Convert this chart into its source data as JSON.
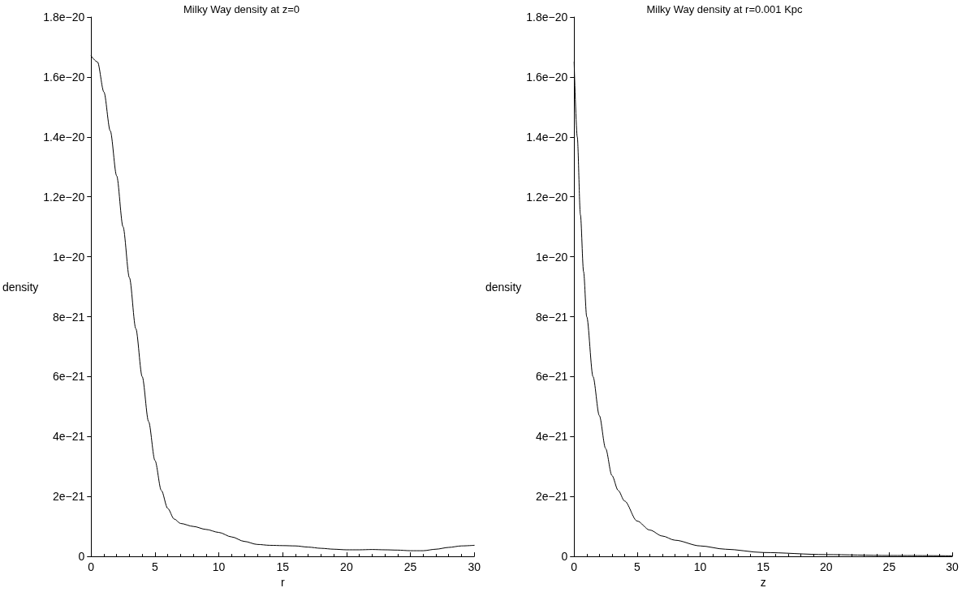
{
  "chart_data": [
    {
      "type": "line",
      "title": "Milky Way density at z=0",
      "xlabel": "r",
      "ylabel": "density",
      "marker": "none",
      "line_style": "solid",
      "x": [
        0,
        0.5,
        1,
        1.5,
        2,
        2.5,
        3,
        3.5,
        4,
        4.5,
        5,
        5.5,
        6,
        6.5,
        7,
        8,
        9,
        10,
        11,
        12,
        13,
        14,
        15,
        16,
        17,
        18,
        19,
        20,
        21,
        22,
        23,
        24,
        25,
        26,
        27,
        28,
        29,
        30
      ],
      "series": [
        {
          "color": "#000000",
          "values": [
            1.67e-20,
            1.65e-20,
            1.55e-20,
            1.42e-20,
            1.27e-20,
            1.1e-20,
            9.3e-21,
            7.6e-21,
            6e-21,
            4.5e-21,
            3.2e-21,
            2.2e-21,
            1.6e-21,
            1.25e-21,
            1.1e-21,
            1e-21,
            9e-22,
            8e-22,
            6.5e-22,
            5e-22,
            4e-22,
            3.7e-22,
            3.6e-22,
            3.5e-22,
            3.1e-22,
            2.7e-22,
            2.4e-22,
            2.2e-22,
            2.2e-22,
            2.3e-22,
            2.2e-22,
            2.1e-22,
            1.9e-22,
            1.9e-22,
            2.4e-22,
            3e-22,
            3.5e-22,
            3.7e-22
          ]
        }
      ],
      "xlim": [
        0,
        30
      ],
      "xticks": [
        0,
        5,
        10,
        15,
        20,
        25,
        30
      ],
      "ylim": [
        0,
        1.8e-20
      ],
      "yticks": [
        0,
        {
          "value": 2e-21,
          "label": "2e−21"
        },
        {
          "value": 4e-21,
          "label": "4e−21"
        },
        {
          "value": 6e-21,
          "label": "6e−21"
        },
        {
          "value": 8e-21,
          "label": "8e−21"
        },
        {
          "value": 1e-20,
          "label": "1e−20"
        },
        {
          "value": 1.2e-20,
          "label": "1.2e−20"
        },
        {
          "value": 1.4e-20,
          "label": "1.4e−20"
        },
        {
          "value": 1.6e-20,
          "label": "1.6e−20"
        },
        {
          "value": 1.8e-20,
          "label": "1.8e−20"
        }
      ]
    },
    {
      "type": "line",
      "title": "Milky Way density at r=0.001 Kpc",
      "xlabel": "z",
      "ylabel": "density",
      "marker": "none",
      "line_style": "solid",
      "x": [
        0,
        0.25,
        0.5,
        0.75,
        1,
        1.5,
        2,
        2.5,
        3,
        3.5,
        4,
        5,
        6,
        7,
        8,
        10,
        12,
        15,
        20,
        25,
        30
      ],
      "series": [
        {
          "color": "#000000",
          "values": [
            1.65e-20,
            1.4e-20,
            1.14e-20,
            9.5e-21,
            8e-21,
            6e-21,
            4.7e-21,
            3.6e-21,
            2.7e-21,
            2.2e-21,
            1.85e-21,
            1.18e-21,
            8.8e-22,
            6.8e-22,
            5.4e-22,
            3.5e-22,
            2.4e-22,
            1.3e-22,
            6e-23,
            3e-23,
            2e-23
          ]
        }
      ],
      "xlim": [
        0,
        30
      ],
      "xticks": [
        0,
        5,
        10,
        15,
        20,
        25,
        30
      ],
      "ylim": [
        0,
        1.8e-20
      ],
      "yticks": [
        0,
        {
          "value": 2e-21,
          "label": "2e−21"
        },
        {
          "value": 4e-21,
          "label": "4e−21"
        },
        {
          "value": 6e-21,
          "label": "6e−21"
        },
        {
          "value": 8e-21,
          "label": "8e−21"
        },
        {
          "value": 1e-20,
          "label": "1e−20"
        },
        {
          "value": 1.2e-20,
          "label": "1.2e−20"
        },
        {
          "value": 1.4e-20,
          "label": "1.4e−20"
        },
        {
          "value": 1.6e-20,
          "label": "1.6e−20"
        },
        {
          "value": 1.8e-20,
          "label": "1.8e−20"
        }
      ]
    }
  ]
}
